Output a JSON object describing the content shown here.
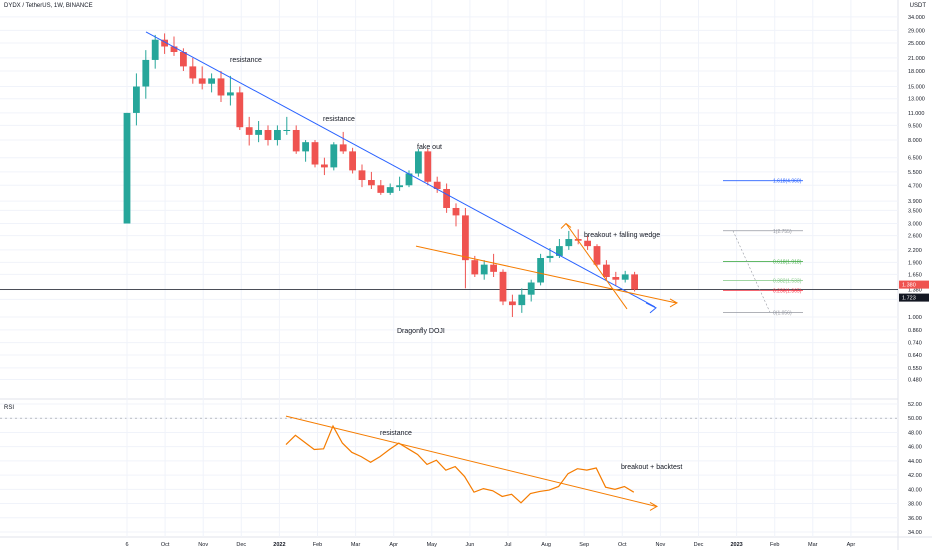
{
  "header": {
    "title": "DYDX / TetherUS, 1W, BINANCE",
    "currency": "USDT"
  },
  "rsi_label": "RSI",
  "annotations": {
    "resistance_1": "resistance",
    "resistance_2": "resistance",
    "fake_out": "fake out",
    "breakout_wedge": "breakout + falling wedge",
    "dragonfly": "Dragonfly DOJI",
    "rsi_resistance": "resistance",
    "rsi_breakout": "breakout + backtest"
  },
  "price_badges": [
    "1.380",
    "1.723"
  ],
  "fib_levels": [
    {
      "label": "1.618(4.960)",
      "value": 4.96,
      "color": "#2962ff"
    },
    {
      "label": "1(2.755)",
      "value": 2.755,
      "color": "#9598a1"
    },
    {
      "label": "0.618(1.918)",
      "value": 1.918,
      "color": "#4caf50"
    },
    {
      "label": "0.382(1.533)",
      "value": 1.533,
      "color": "#81c784"
    },
    {
      "label": "0.236(1.365)",
      "value": 1.365,
      "color": "#f23645"
    },
    {
      "label": "0(1.056)",
      "value": 1.056,
      "color": "#9598a1"
    }
  ],
  "colors": {
    "up": "#26a69a",
    "down": "#ef5350",
    "trend": "#2962ff",
    "support": "#f57c00",
    "rsi": "#f57c00",
    "grid": "#f0f3fa"
  },
  "chart_data": [
    {
      "type": "candlestick",
      "title": "DYDX / TetherUS, 1W, BINANCE",
      "scale": "log",
      "ylim": [
        0.4,
        36
      ],
      "y_ticks": [
        "34.000",
        "29.000",
        "25.000",
        "21.000",
        "18.000",
        "15.000",
        "13.000",
        "11.000",
        "9.500",
        "8.000",
        "6.500",
        "5.500",
        "4.700",
        "3.900",
        "3.500",
        "3.000",
        "2.600",
        "2.200",
        "1.900",
        "1.650",
        "1.380",
        "1.230",
        "1.000",
        "0.860",
        "0.740",
        "0.640",
        "0.550",
        "0.480"
      ],
      "x_ticks": [
        "6",
        "Oct",
        "Nov",
        "Dec",
        "2022",
        "Feb",
        "Mar",
        "Apr",
        "May",
        "Jun",
        "Jul",
        "Aug",
        "Sep",
        "Oct",
        "Nov",
        "Dec",
        "2023",
        "Feb",
        "Mar",
        "Apr"
      ],
      "candles": [
        {
          "o": 3.0,
          "h": 11.0,
          "l": 3.0,
          "c": 11.0
        },
        {
          "o": 11.0,
          "h": 17.5,
          "l": 9.5,
          "c": 15.0
        },
        {
          "o": 15.0,
          "h": 23.0,
          "l": 13.0,
          "c": 20.5
        },
        {
          "o": 20.5,
          "h": 27.5,
          "l": 18.5,
          "c": 26.0
        },
        {
          "o": 26.0,
          "h": 28.0,
          "l": 22.0,
          "c": 24.0
        },
        {
          "o": 24.0,
          "h": 27.0,
          "l": 21.5,
          "c": 22.5
        },
        {
          "o": 22.5,
          "h": 23.5,
          "l": 18.0,
          "c": 19.0
        },
        {
          "o": 19.0,
          "h": 21.0,
          "l": 15.5,
          "c": 16.5
        },
        {
          "o": 16.5,
          "h": 19.0,
          "l": 14.5,
          "c": 15.5
        },
        {
          "o": 15.5,
          "h": 17.5,
          "l": 14.0,
          "c": 16.5
        },
        {
          "o": 16.5,
          "h": 18.0,
          "l": 12.5,
          "c": 13.5
        },
        {
          "o": 13.5,
          "h": 17.0,
          "l": 12.0,
          "c": 14.0
        },
        {
          "o": 14.0,
          "h": 15.0,
          "l": 9.0,
          "c": 9.3
        },
        {
          "o": 9.3,
          "h": 10.5,
          "l": 7.5,
          "c": 8.5
        },
        {
          "o": 8.5,
          "h": 10.0,
          "l": 7.8,
          "c": 9.0
        },
        {
          "o": 9.0,
          "h": 9.5,
          "l": 7.5,
          "c": 8.0
        },
        {
          "o": 8.0,
          "h": 9.5,
          "l": 7.5,
          "c": 9.0
        },
        {
          "o": 9.0,
          "h": 10.5,
          "l": 8.5,
          "c": 9.0
        },
        {
          "o": 9.0,
          "h": 9.5,
          "l": 6.8,
          "c": 7.0
        },
        {
          "o": 7.0,
          "h": 8.0,
          "l": 6.2,
          "c": 7.8
        },
        {
          "o": 7.8,
          "h": 8.0,
          "l": 5.8,
          "c": 6.0
        },
        {
          "o": 6.0,
          "h": 6.5,
          "l": 5.3,
          "c": 5.8
        },
        {
          "o": 5.8,
          "h": 7.8,
          "l": 5.6,
          "c": 7.6
        },
        {
          "o": 7.6,
          "h": 8.8,
          "l": 6.8,
          "c": 7.0
        },
        {
          "o": 7.0,
          "h": 7.3,
          "l": 5.4,
          "c": 5.6
        },
        {
          "o": 5.6,
          "h": 6.0,
          "l": 4.6,
          "c": 5.0
        },
        {
          "o": 5.0,
          "h": 5.5,
          "l": 4.5,
          "c": 4.7
        },
        {
          "o": 4.7,
          "h": 5.0,
          "l": 4.2,
          "c": 4.3
        },
        {
          "o": 4.3,
          "h": 4.8,
          "l": 4.2,
          "c": 4.6
        },
        {
          "o": 4.6,
          "h": 5.2,
          "l": 4.4,
          "c": 4.7
        },
        {
          "o": 4.7,
          "h": 5.6,
          "l": 4.6,
          "c": 5.4
        },
        {
          "o": 5.4,
          "h": 7.2,
          "l": 5.2,
          "c": 7.0
        },
        {
          "o": 7.0,
          "h": 7.2,
          "l": 4.7,
          "c": 4.9
        },
        {
          "o": 4.9,
          "h": 5.2,
          "l": 4.3,
          "c": 4.5
        },
        {
          "o": 4.5,
          "h": 4.8,
          "l": 3.4,
          "c": 3.6
        },
        {
          "o": 3.6,
          "h": 3.8,
          "l": 2.9,
          "c": 3.3
        },
        {
          "o": 3.3,
          "h": 3.6,
          "l": 1.4,
          "c": 1.95
        },
        {
          "o": 1.95,
          "h": 2.05,
          "l": 1.6,
          "c": 1.65
        },
        {
          "o": 1.65,
          "h": 1.95,
          "l": 1.55,
          "c": 1.85
        },
        {
          "o": 1.85,
          "h": 2.1,
          "l": 1.6,
          "c": 1.7
        },
        {
          "o": 1.7,
          "h": 1.75,
          "l": 1.15,
          "c": 1.2
        },
        {
          "o": 1.2,
          "h": 1.3,
          "l": 1.0,
          "c": 1.15
        },
        {
          "o": 1.15,
          "h": 1.4,
          "l": 1.05,
          "c": 1.3
        },
        {
          "o": 1.3,
          "h": 1.55,
          "l": 1.2,
          "c": 1.5
        },
        {
          "o": 1.5,
          "h": 2.1,
          "l": 1.45,
          "c": 2.0
        },
        {
          "o": 2.0,
          "h": 2.25,
          "l": 1.9,
          "c": 2.05
        },
        {
          "o": 2.05,
          "h": 2.5,
          "l": 2.0,
          "c": 2.3
        },
        {
          "o": 2.3,
          "h": 2.75,
          "l": 2.2,
          "c": 2.5
        },
        {
          "o": 2.5,
          "h": 2.8,
          "l": 2.35,
          "c": 2.45
        },
        {
          "o": 2.45,
          "h": 2.6,
          "l": 2.2,
          "c": 2.3
        },
        {
          "o": 2.3,
          "h": 2.35,
          "l": 1.8,
          "c": 1.85
        },
        {
          "o": 1.85,
          "h": 1.95,
          "l": 1.55,
          "c": 1.6
        },
        {
          "o": 1.6,
          "h": 1.7,
          "l": 1.45,
          "c": 1.55
        },
        {
          "o": 1.55,
          "h": 1.72,
          "l": 1.5,
          "c": 1.65
        },
        {
          "o": 1.65,
          "h": 1.7,
          "l": 1.35,
          "c": 1.38
        }
      ]
    },
    {
      "type": "line",
      "title": "RSI",
      "ylim": [
        34,
        52
      ],
      "y_ticks": [
        "52.00",
        "50.00",
        "48.00",
        "46.00",
        "44.00",
        "42.00",
        "40.00",
        "38.00",
        "36.00",
        "34.00"
      ],
      "values": [
        46.3,
        47.6,
        46.6,
        45.6,
        45.7,
        48.9,
        46.5,
        45.2,
        44.6,
        43.8,
        44.6,
        45.6,
        46.5,
        45.7,
        44.9,
        43.5,
        44.1,
        42.7,
        43.2,
        41.8,
        39.6,
        40.1,
        39.8,
        39.0,
        39.3,
        38.1,
        39.4,
        39.7,
        39.9,
        40.4,
        42.2,
        42.9,
        42.7,
        43.0,
        40.3,
        40.0,
        40.4,
        39.6
      ]
    }
  ]
}
